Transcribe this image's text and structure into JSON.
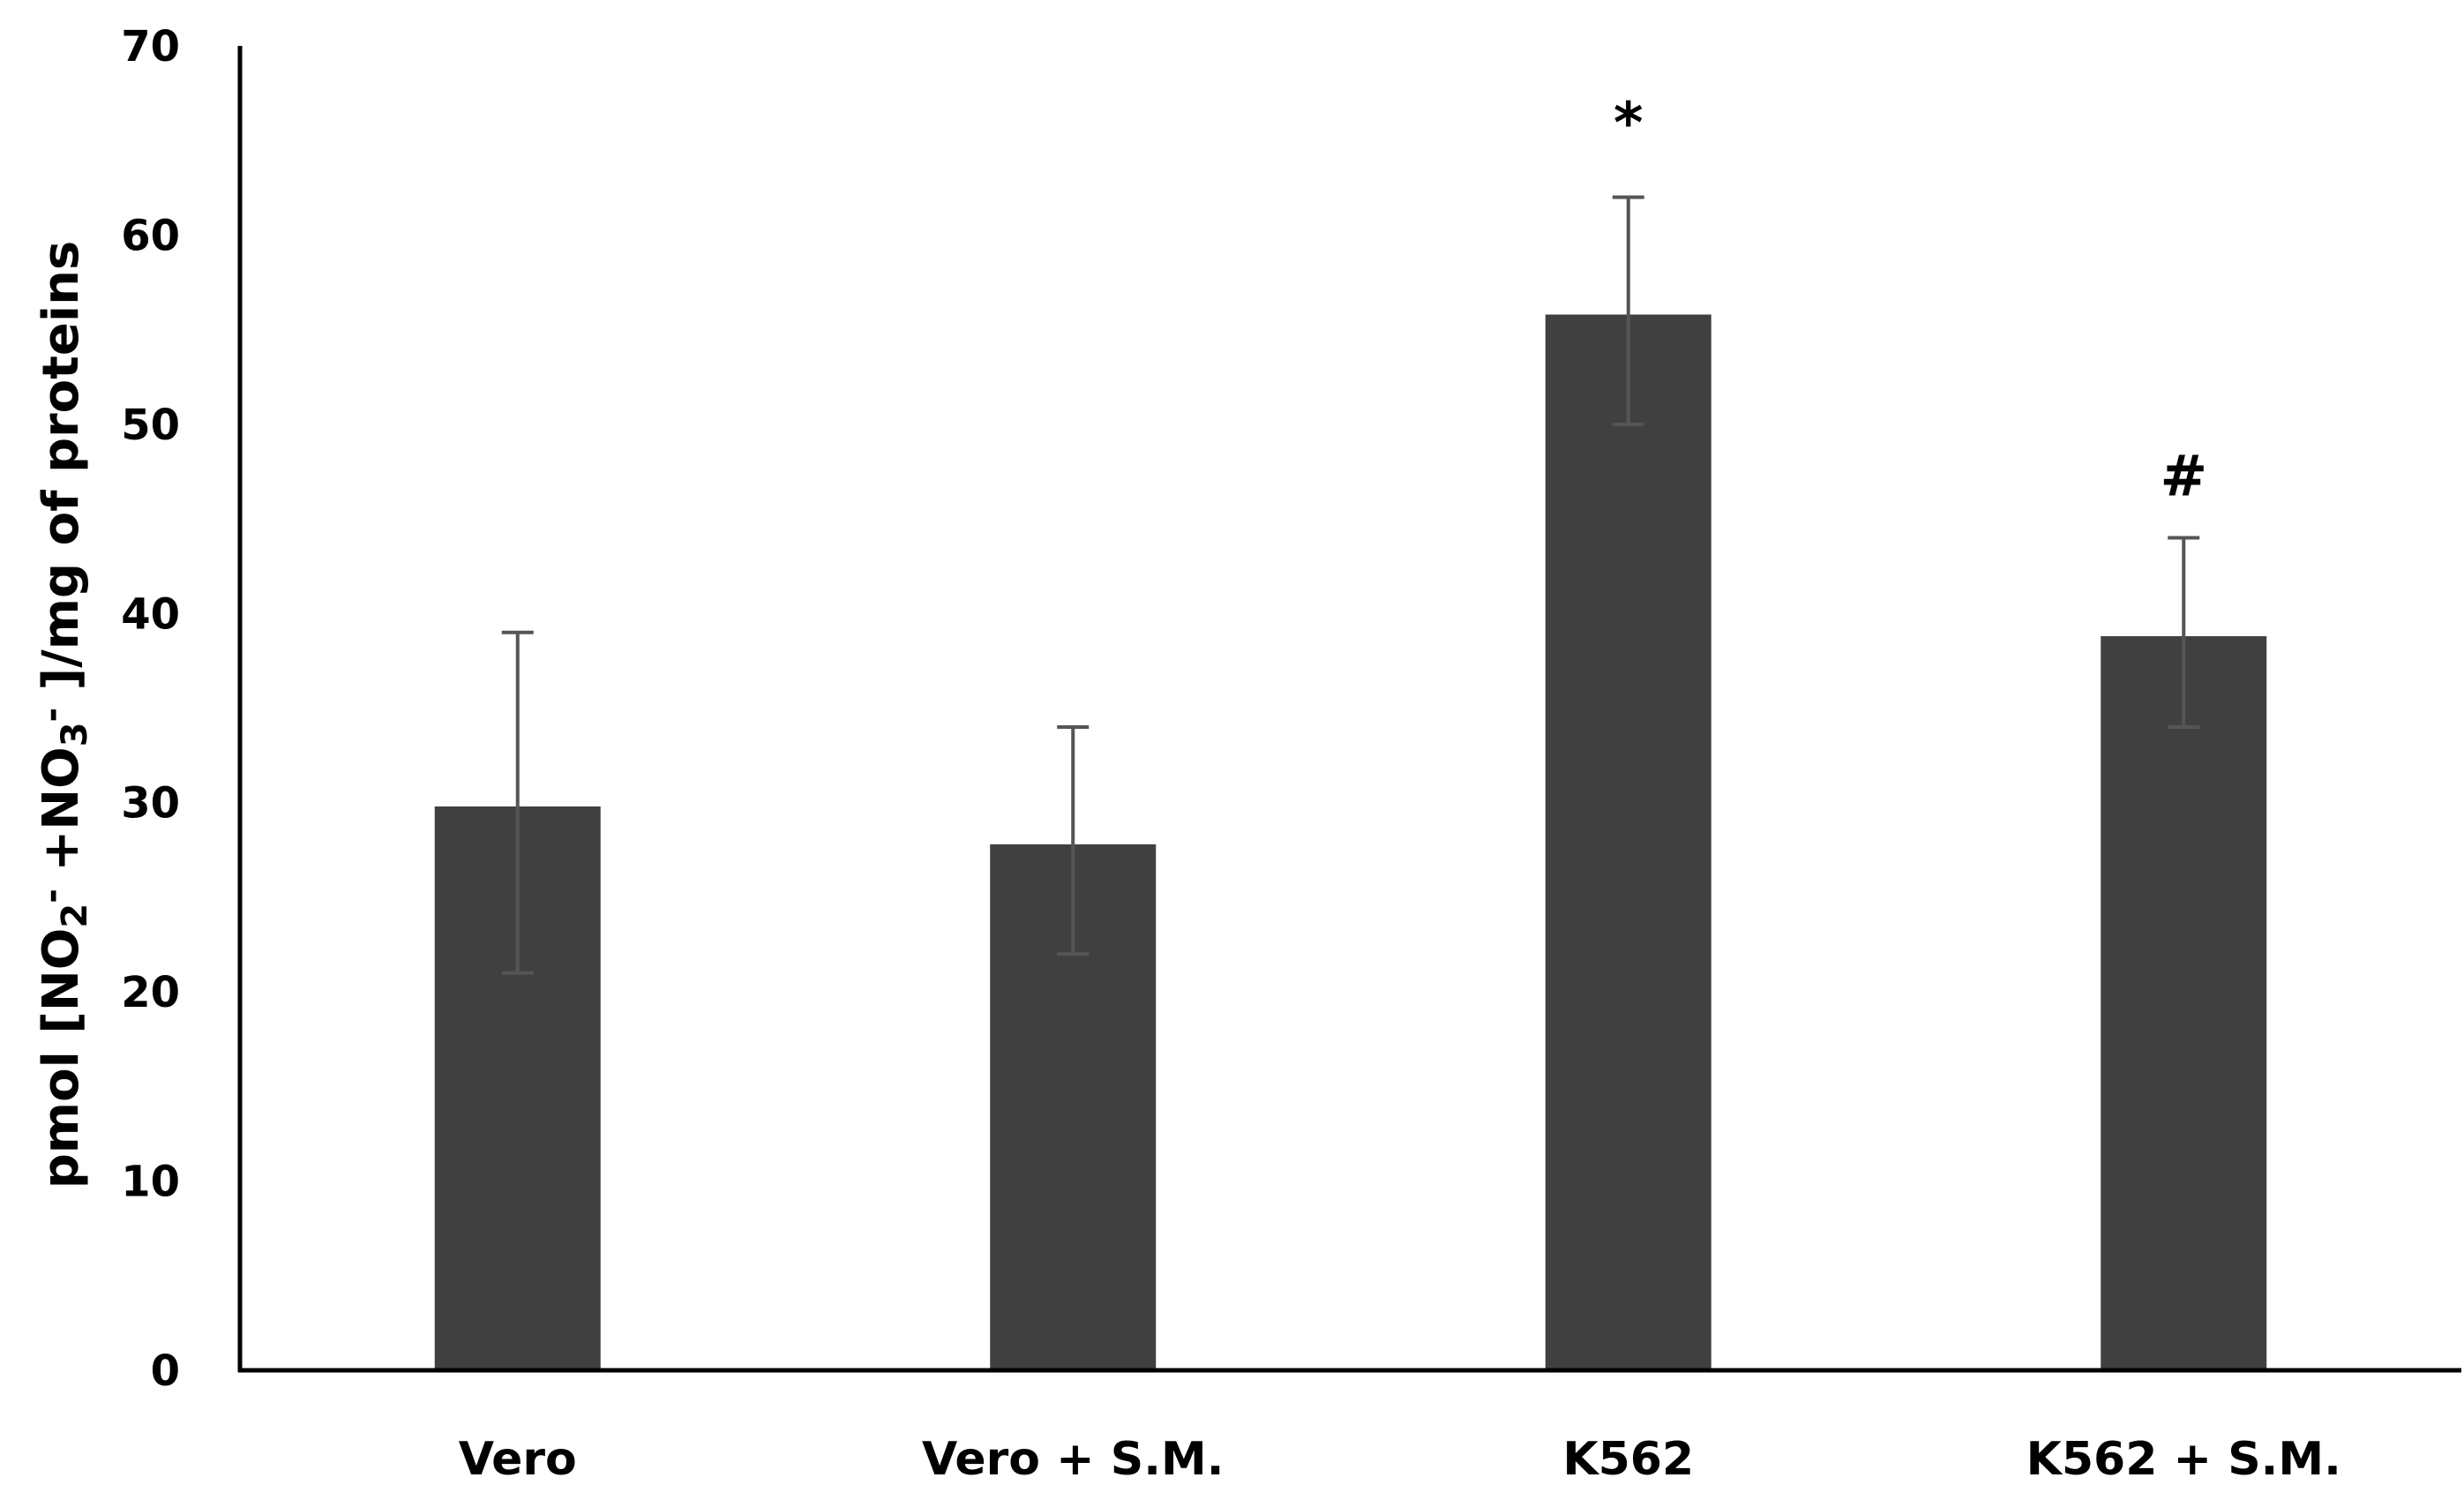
{
  "chart_data": {
    "type": "bar",
    "categories": [
      "Vero",
      "Vero + S.M.",
      "K562",
      "K562 + S.M."
    ],
    "values": [
      29.8,
      27.8,
      55.8,
      38.8
    ],
    "error_bars": [
      {
        "low": 21,
        "high": 39
      },
      {
        "low": 22,
        "high": 34
      },
      {
        "low": 50,
        "high": 62
      },
      {
        "low": 34,
        "high": 44
      }
    ],
    "annotations": [
      "",
      "",
      "*",
      "#"
    ],
    "ylabel": {
      "parts": [
        {
          "text": "pmol [NO",
          "style": "normal"
        },
        {
          "text": "2",
          "style": "sub"
        },
        {
          "text": "-",
          "style": "sup"
        },
        {
          "text": " +NO",
          "style": "normal"
        },
        {
          "text": "3",
          "style": "sub"
        },
        {
          "text": "-",
          "style": "sup"
        },
        {
          "text": " ]/mg of proteins",
          "style": "normal"
        }
      ]
    },
    "xlabel": "",
    "ylim": [
      0,
      70
    ],
    "yticks": [
      "0",
      "10",
      "20",
      "30",
      "40",
      "50",
      "60",
      "70"
    ],
    "grid": false,
    "legend": "none",
    "colors": {
      "bar": "#404040",
      "error": "#555555",
      "axis": "#000000"
    }
  }
}
